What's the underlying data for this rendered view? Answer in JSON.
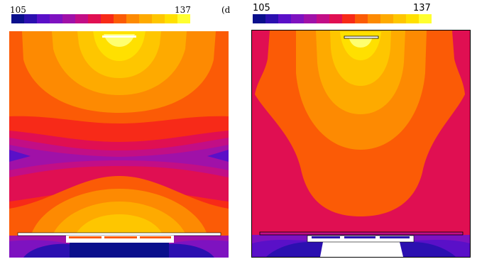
{
  "colormap": [
    "#0a0f8c",
    "#2b10b0",
    "#5a10c8",
    "#7e12c0",
    "#a011a8",
    "#c20e86",
    "#e00f52",
    "#f72a18",
    "#fb5b06",
    "#fd8a02",
    "#feaa00",
    "#fec600",
    "#ffe000",
    "#ffff30"
  ],
  "left_plot": {
    "legend": {
      "min_label": "105",
      "max_label": "137",
      "unit_label": "(dB"
    }
  },
  "right_plot": {
    "legend": {
      "min_label": "105",
      "max_label": "137"
    }
  }
}
